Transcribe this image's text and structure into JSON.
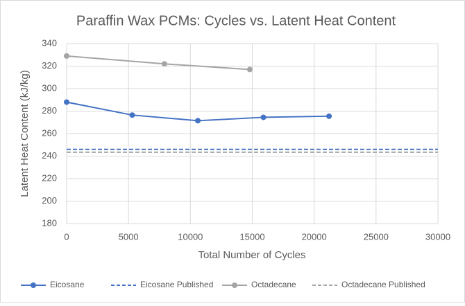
{
  "chart_data": {
    "type": "line",
    "title": "Paraffin Wax PCMs: Cycles vs. Latent Heat Content",
    "x_label": "Total Number of Cycles",
    "y_label": "Latent Heat Content (kJ/kg)",
    "xlim": [
      0,
      30000
    ],
    "xticks": [
      0,
      5000,
      10000,
      15000,
      20000,
      25000,
      30000
    ],
    "ylim": [
      180,
      340
    ],
    "yticks": [
      180,
      200,
      220,
      240,
      260,
      280,
      300,
      320,
      340
    ],
    "grid": true,
    "legend": "bottom",
    "series": [
      {
        "name": "Eicosane",
        "color": "#4472c4",
        "dashed": false,
        "markers": true,
        "x": [
          0,
          5300,
          10600,
          15900,
          21200
        ],
        "values": [
          288,
          276.5,
          271.5,
          274.5,
          275.5
        ]
      },
      {
        "name": "Eicosane Published",
        "color": "#4472c4",
        "dashed": true,
        "markers": false,
        "x": [
          0,
          30000
        ],
        "values": [
          246,
          246
        ]
      },
      {
        "name": "Octadecane",
        "color": "#a5a5a5",
        "dashed": false,
        "markers": true,
        "x": [
          0,
          7900,
          14800
        ],
        "values": [
          329,
          322,
          317
        ]
      },
      {
        "name": "Octadecane Published",
        "color": "#a5a5a5",
        "dashed": true,
        "markers": false,
        "x": [
          0,
          30000
        ],
        "values": [
          243.5,
          243.5
        ]
      }
    ]
  }
}
